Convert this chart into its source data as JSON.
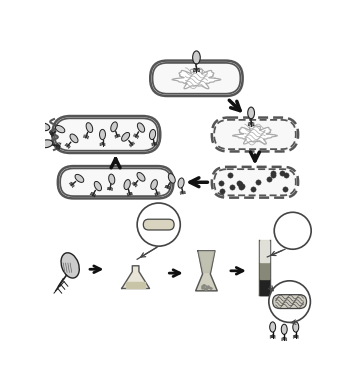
{
  "bg_color": "#ffffff",
  "fig_width": 3.51,
  "fig_height": 3.83,
  "dpi": 100,
  "cell_fill": "#f8f8f8",
  "cell_edge": "#555555",
  "cell_lw": 1.8,
  "dna_color": "#999999",
  "phage_head_fill": "#cccccc",
  "phage_color": "#222222",
  "dot_color": "#333333",
  "arrow_color": "#111111"
}
